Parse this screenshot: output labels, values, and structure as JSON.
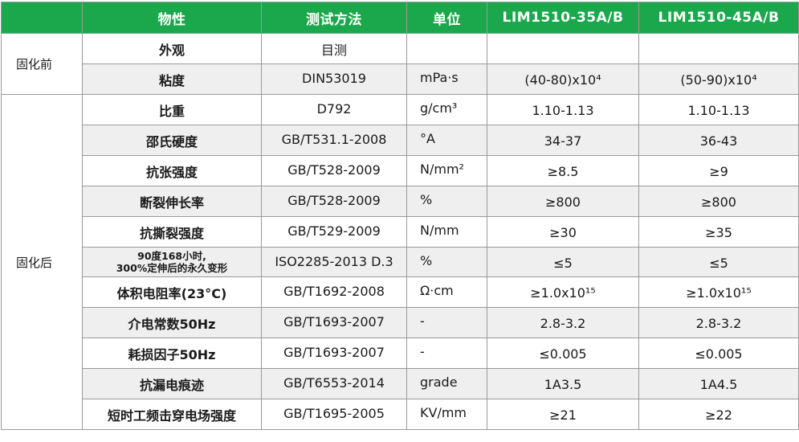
{
  "header": {
    "property": "物性",
    "method": "测试方法",
    "unit": "单位",
    "product_a": "LIM1510-35A/B",
    "product_b": "LIM1510-45A/B"
  },
  "groups": {
    "before": "固化前",
    "after": "固化后"
  },
  "rows": [
    {
      "property": "外观",
      "method": "目测",
      "unit": "",
      "a": "",
      "b": ""
    },
    {
      "property": "粘度",
      "method": "DIN53019",
      "unit": "mPa·s",
      "a": "(40-80)x10⁴",
      "b": "(50-90)x10⁴"
    },
    {
      "property": "比重",
      "method": "D792",
      "unit": "g/cm³",
      "a": "1.10-1.13",
      "b": "1.10-1.13"
    },
    {
      "property": "邵氏硬度",
      "method": "GB/T531.1-2008",
      "unit": "°A",
      "a": "34-37",
      "b": "36-43"
    },
    {
      "property": "抗张强度",
      "method": "GB/T528-2009",
      "unit": "N/mm²",
      "a": "≥8.5",
      "b": "≥9"
    },
    {
      "property": "断裂伸长率",
      "method": "GB/T528-2009",
      "unit": "%",
      "a": "≥800",
      "b": "≥800"
    },
    {
      "property": "抗撕裂强度",
      "method": "GB/T529-2009",
      "unit": "N/mm",
      "a": "≥30",
      "b": "≥35"
    },
    {
      "property_line1": "90度168小时,",
      "property_line2": "300%定伸后的永久变形",
      "method": "ISO2285-2013 D.3",
      "unit": "%",
      "a": "≤5",
      "b": "≤5"
    },
    {
      "property": "体积电阻率(23°C)",
      "method": "GB/T1692-2008",
      "unit": "Ω·cm",
      "a": "≥1.0x10¹⁵",
      "b": "≥1.0x10¹⁵"
    },
    {
      "property": "介电常数50Hz",
      "method": "GB/T1693-2007",
      "unit": "-",
      "a": "2.8-3.2",
      "b": "2.8-3.2"
    },
    {
      "property": "耗损因子50Hz",
      "method": "GB/T1693-2007",
      "unit": "-",
      "a": "≤0.005",
      "b": "≤0.005"
    },
    {
      "property": "抗漏电痕迹",
      "method": "GB/T6553-2014",
      "unit": "grade",
      "a": "1A3.5",
      "b": "1A4.5"
    },
    {
      "property": "短时工频击穿电场强度",
      "method": "GB/T1695-2005",
      "unit": "KV/mm",
      "a": "≥21",
      "b": "≥22"
    }
  ],
  "colors": {
    "header_bg": "#1ba84c",
    "header_text": "#ffffff",
    "stripe_bg": "#efefef",
    "border": "#9a9a9a"
  }
}
